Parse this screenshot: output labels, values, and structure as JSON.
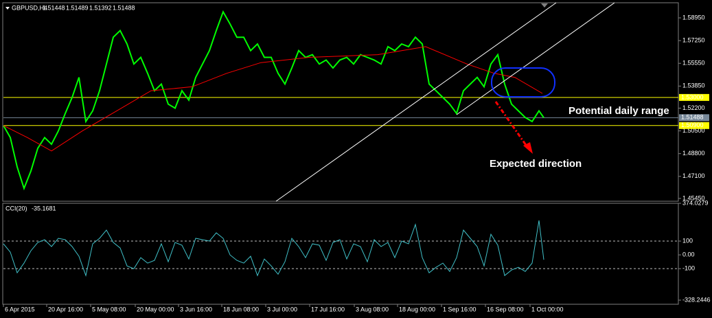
{
  "chart_data": [
    {
      "type": "line",
      "title": "GBPUSD,H4",
      "ohlc": [
        1.51448,
        1.51489,
        1.51392,
        1.51488
      ],
      "annotations": [
        "Potential daily range",
        "Expected direction"
      ],
      "xlim": [
        0,
        98.3
      ],
      "ylim": [
        1.4524,
        1.6008
      ],
      "yticks": [
        {
          "value": 1.5895,
          "label": "1.58950"
        },
        {
          "value": 1.5725,
          "label": "1.57250"
        },
        {
          "value": 1.5555,
          "label": "1.55550"
        },
        {
          "value": 1.5385,
          "label": "1.53850"
        },
        {
          "value": 1.522,
          "label": "1.52200"
        },
        {
          "value": 1.505,
          "label": "1.50500"
        },
        {
          "value": 1.488,
          "label": "1.48800"
        },
        {
          "value": 1.471,
          "label": "1.47100"
        },
        {
          "value": 1.4545,
          "label": "1.45450"
        }
      ],
      "hlines": [
        {
          "value": 1.53,
          "label": "1.53000",
          "color": "#ffff00"
        },
        {
          "value": 1.509,
          "label": "1.50900",
          "color": "#ffff00"
        },
        {
          "value": 1.51488,
          "label": "1.51488",
          "color": "#778899"
        }
      ],
      "series": [
        {
          "color": "#00ff00",
          "x": [
            0,
            1,
            2,
            3,
            4,
            5,
            6,
            7,
            8,
            9,
            10,
            11,
            12,
            13,
            14,
            15,
            16,
            17,
            18,
            19,
            20,
            21,
            22,
            23,
            24,
            25,
            26,
            27,
            28,
            29,
            30,
            31,
            32,
            33,
            34,
            35,
            36,
            37,
            38,
            39,
            40,
            41,
            42,
            43,
            44,
            45,
            46,
            47,
            48,
            49,
            50,
            51,
            52,
            53,
            54,
            55,
            56,
            57,
            58,
            59,
            60,
            61,
            62,
            63,
            64,
            65,
            66,
            67,
            68,
            69,
            70,
            71,
            72,
            73,
            74,
            75,
            76,
            77,
            78,
            78.7
          ],
          "values": [
            1.509,
            1.5,
            1.478,
            1.462,
            1.475,
            1.492,
            1.5,
            1.495,
            1.505,
            1.518,
            1.53,
            1.545,
            1.512,
            1.52,
            1.535,
            1.555,
            1.575,
            1.58,
            1.57,
            1.555,
            1.56,
            1.548,
            1.535,
            1.54,
            1.525,
            1.522,
            1.535,
            1.528,
            1.545,
            1.555,
            1.565,
            1.58,
            1.594,
            1.585,
            1.575,
            1.575,
            1.565,
            1.57,
            1.56,
            1.56,
            1.548,
            1.54,
            1.552,
            1.565,
            1.56,
            1.562,
            1.555,
            1.558,
            1.552,
            1.558,
            1.56,
            1.555,
            1.562,
            1.56,
            1.558,
            1.555,
            1.568,
            1.565,
            1.57,
            1.568,
            1.575,
            1.57,
            1.54,
            1.535,
            1.53,
            1.525,
            1.518,
            1.535,
            1.54,
            1.545,
            1.538,
            1.555,
            1.562,
            1.54,
            1.525,
            1.52,
            1.515,
            1.512,
            1.52,
            1.51488
          ]
        },
        {
          "color": "#ff0000",
          "x": [
            0,
            3.5,
            7,
            11.5,
            16.5,
            21.5,
            27.5,
            32.5,
            37.5,
            44.5,
            54.5,
            61.5,
            67.5,
            71.5,
            74.5,
            78.5
          ],
          "values": [
            1.509,
            1.5,
            1.49,
            1.505,
            1.52,
            1.535,
            1.538,
            1.548,
            1.556,
            1.56,
            1.562,
            1.568,
            1.555,
            1.548,
            1.545,
            1.533
          ]
        }
      ]
    },
    {
      "type": "line",
      "title": "CCI(20)",
      "last": -35.1681,
      "xlim": [
        0,
        98.3
      ],
      "ylim": [
        -328.2446,
        374.0279
      ],
      "yticks": [
        374.0279,
        100,
        {
          "value": 0,
          "label": "0.00"
        },
        -100,
        -328.2446
      ],
      "levels": [
        100,
        -100
      ],
      "xticks": [
        {
          "value": 0,
          "label": "6 Apr 2015"
        },
        {
          "value": 6.3,
          "label": "20 Apr 16:00"
        },
        {
          "value": 12.7,
          "label": "5 May 08:00"
        },
        {
          "value": 19.2,
          "label": "20 May 00:00"
        },
        {
          "value": 25.5,
          "label": "3 Jun 16:00"
        },
        {
          "value": 31.8,
          "label": "18 Jun 08:00"
        },
        {
          "value": 38.2,
          "label": "3 Jul 00:00"
        },
        {
          "value": 44.6,
          "label": "17 Jul 16:00"
        },
        {
          "value": 51.1,
          "label": "3 Aug 08:00"
        },
        {
          "value": 57.4,
          "label": "18 Aug 00:00"
        },
        {
          "value": 63.8,
          "label": "1 Sep 16:00"
        },
        {
          "value": 70.2,
          "label": "16 Sep 08:00"
        },
        {
          "value": 76.7,
          "label": "1 Oct 00:00"
        }
      ],
      "series": [
        {
          "color": "#40c0c8",
          "x": [
            0,
            1,
            2,
            3,
            4,
            5,
            6,
            7,
            8,
            9,
            10,
            11,
            12,
            13,
            14,
            15,
            16,
            17,
            18,
            19,
            20,
            21,
            22,
            23,
            24,
            25,
            26,
            27,
            28,
            29,
            30,
            31,
            32,
            33,
            34,
            35,
            36,
            37,
            38,
            39,
            40,
            41,
            42,
            43,
            44,
            45,
            46,
            47,
            48,
            49,
            50,
            51,
            52,
            53,
            54,
            55,
            56,
            57,
            58,
            59,
            60,
            61,
            62,
            63,
            64,
            65,
            66,
            67,
            68,
            69,
            70,
            71,
            72,
            73,
            74,
            75,
            76,
            77,
            78,
            78.7
          ],
          "values": [
            80,
            20,
            -130,
            -60,
            30,
            90,
            110,
            60,
            120,
            110,
            60,
            -10,
            -150,
            80,
            120,
            180,
            90,
            50,
            -80,
            -100,
            -20,
            -60,
            -40,
            80,
            -50,
            90,
            70,
            -30,
            120,
            110,
            100,
            160,
            120,
            0,
            -40,
            -60,
            -10,
            -150,
            -30,
            -80,
            -140,
            -50,
            120,
            60,
            -20,
            80,
            70,
            -40,
            90,
            110,
            -30,
            80,
            60,
            -50,
            110,
            60,
            90,
            -20,
            100,
            80,
            220,
            -20,
            -130,
            -90,
            -60,
            -120,
            -20,
            180,
            120,
            60,
            -80,
            150,
            70,
            -150,
            -110,
            -90,
            -120,
            -60,
            250,
            -35.1681
          ]
        }
      ]
    }
  ]
}
